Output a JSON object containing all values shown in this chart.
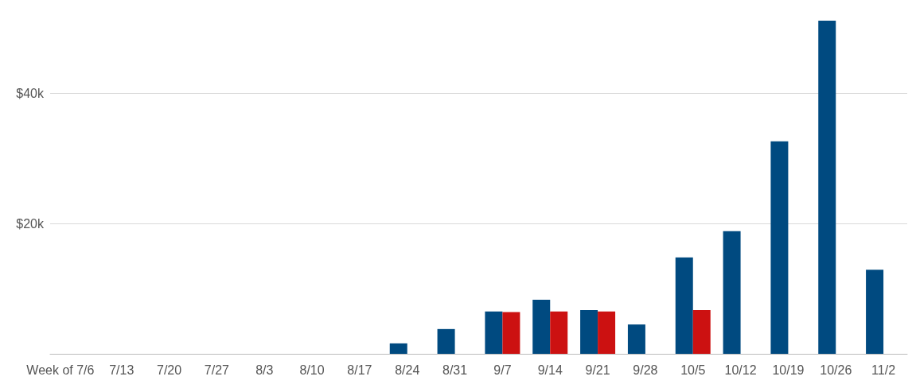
{
  "chart_data": {
    "type": "bar",
    "categories": [
      "Week of 7/6",
      "7/13",
      "7/20",
      "7/27",
      "8/3",
      "8/10",
      "8/17",
      "8/24",
      "8/31",
      "9/7",
      "9/14",
      "9/21",
      "9/28",
      "10/5",
      "10/12",
      "10/19",
      "10/26",
      "11/2"
    ],
    "series": [
      {
        "color": "#004a80",
        "values": [
          null,
          null,
          null,
          null,
          null,
          null,
          null,
          1600,
          3800,
          6500,
          8300,
          6700,
          4500,
          14800,
          18800,
          32600,
          51100,
          12900
        ]
      },
      {
        "color": "#cc1111",
        "values": [
          null,
          null,
          null,
          null,
          null,
          null,
          null,
          null,
          null,
          6400,
          6500,
          6500,
          null,
          6700,
          null,
          null,
          null,
          null
        ]
      }
    ],
    "ylim": [
      0,
      51100
    ],
    "yticks": [
      {
        "value": 0,
        "label": null
      },
      {
        "value": 20000,
        "label": "$20k"
      },
      {
        "value": 40000,
        "label": "$40k"
      }
    ],
    "grid": "y"
  }
}
